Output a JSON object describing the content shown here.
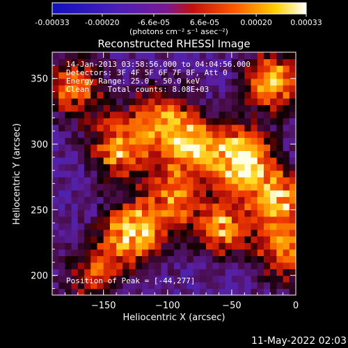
{
  "colorbar": {
    "tick_labels": [
      "-0.00033",
      "-0.00020",
      "-6.6e-05",
      "6.6e-05",
      "0.00020",
      "0.00033"
    ],
    "tick_values": [
      -0.00033,
      -0.0002,
      -6.6e-05,
      6.6e-05,
      0.0002,
      0.00033
    ],
    "range": [
      -0.00033,
      0.00033
    ],
    "unit_label": "(photons cm⁻² s⁻¹ asec⁻²)",
    "colors": [
      "#1010c0",
      "#5020b0",
      "#c01010",
      "#ff6000",
      "#ffd000",
      "#ffffff"
    ]
  },
  "chart_data": {
    "type": "heatmap",
    "title": "Reconstructed RHESSI Image",
    "xlabel": "Heliocentric X (arcsec)",
    "ylabel": "Heliocentric Y (arcsec)",
    "xlim": [
      -190,
      0
    ],
    "ylim": [
      185,
      370
    ],
    "x_ticks": [
      -150,
      -100,
      -50,
      0
    ],
    "y_ticks": [
      200,
      250,
      300,
      350
    ],
    "x_tick_labels": [
      "−150",
      "−100",
      "−50",
      "0"
    ],
    "y_tick_labels": [
      "200",
      "250",
      "300",
      "350"
    ],
    "peak": [
      -44,
      277
    ],
    "bright_regions": [
      {
        "x": -45,
        "y": 287,
        "strength": 1.0
      },
      {
        "x": -85,
        "y": 296,
        "strength": 0.8
      },
      {
        "x": -130,
        "y": 230,
        "strength": 0.85
      },
      {
        "x": -15,
        "y": 255,
        "strength": 0.75
      },
      {
        "x": -140,
        "y": 295,
        "strength": 0.7
      },
      {
        "x": -175,
        "y": 340,
        "strength": 0.6
      },
      {
        "x": -20,
        "y": 345,
        "strength": 0.7
      },
      {
        "x": -60,
        "y": 235,
        "strength": 0.65
      },
      {
        "x": -10,
        "y": 215,
        "strength": 0.6
      },
      {
        "x": -100,
        "y": 255,
        "strength": 0.55
      },
      {
        "x": -160,
        "y": 200,
        "strength": 0.45
      },
      {
        "x": -110,
        "y": 320,
        "strength": 0.55
      }
    ]
  },
  "annotations": {
    "time_range": "14-Jan-2013 03:58:56.000 to 04:04:56.000",
    "detectors": "Detectors: 3F 4F 5F 6F 7F 8F, Att 0",
    "energy": "Energy Range: 25.0 - 50.0 keV",
    "method": "Clean    Total counts: 8.08E+03",
    "peak": "Position of Peak = [-44,277]"
  },
  "footer": {
    "date": "11-May-2022 02:03"
  }
}
